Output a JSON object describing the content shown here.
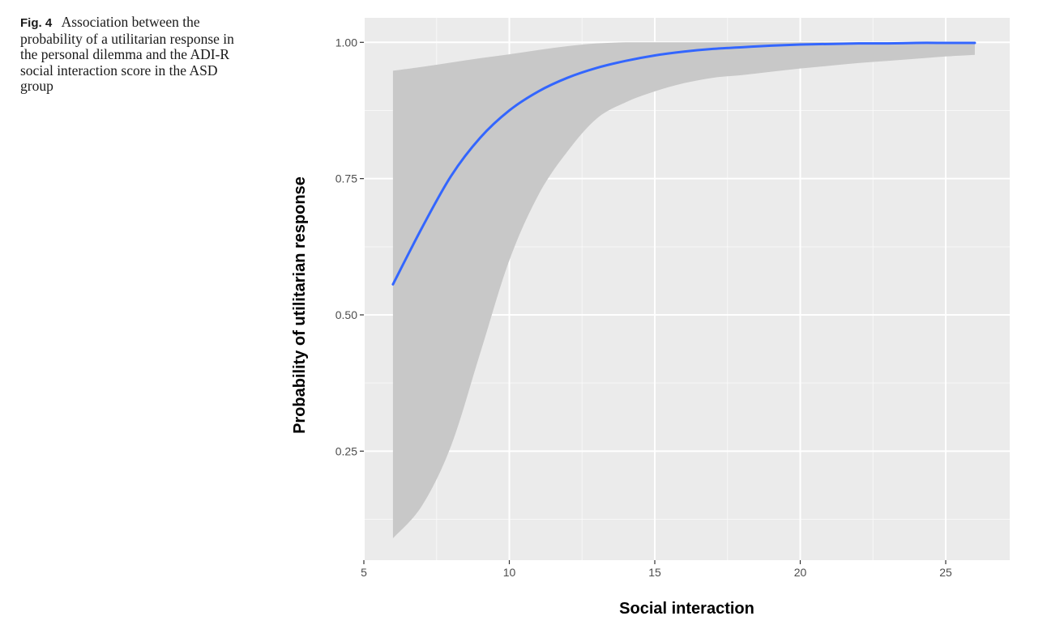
{
  "caption": {
    "label": "Fig. 4",
    "text": "Association between the probability of a utilitarian response in the personal dilemma and the ADI-R social interaction score in the ASD group"
  },
  "chart_data": {
    "type": "line",
    "xlabel": "Social interaction",
    "ylabel": "Probability of utilitarian response",
    "xlim": [
      5,
      27.2
    ],
    "ylim": [
      0.05,
      1.045
    ],
    "x_ticks": [
      5,
      10,
      15,
      20,
      25
    ],
    "y_ticks": [
      0.25,
      0.5,
      0.75,
      1.0
    ],
    "x_tick_labels": [
      "5",
      "10",
      "15",
      "20",
      "25"
    ],
    "y_tick_labels": [
      "0.25",
      "0.50",
      "0.75",
      "1.00"
    ],
    "x_minor_ticks": [
      7.5,
      12.5,
      17.5,
      22.5
    ],
    "y_minor_ticks": [
      0.125,
      0.375,
      0.625,
      0.875
    ],
    "grid": true,
    "series": [
      {
        "color": "#3366ff",
        "x": [
          6,
          7,
          8,
          9,
          10,
          11,
          12,
          13,
          14,
          15,
          16,
          17,
          18,
          19,
          20,
          21,
          22,
          23,
          24,
          25,
          26
        ],
        "y": [
          0.556,
          0.66,
          0.755,
          0.825,
          0.875,
          0.91,
          0.935,
          0.953,
          0.966,
          0.976,
          0.983,
          0.988,
          0.991,
          0.994,
          0.996,
          0.997,
          0.998,
          0.998,
          0.999,
          0.999,
          0.999
        ],
        "ci_lower": [
          0.09,
          0.15,
          0.26,
          0.43,
          0.6,
          0.72,
          0.8,
          0.86,
          0.89,
          0.91,
          0.925,
          0.935,
          0.94,
          0.946,
          0.952,
          0.957,
          0.962,
          0.966,
          0.97,
          0.974,
          0.977
        ],
        "ci_upper": [
          0.948,
          0.955,
          0.963,
          0.971,
          0.978,
          0.986,
          0.993,
          0.998,
          1.0,
          1.0,
          1.0,
          1.0,
          1.0,
          1.0,
          1.0,
          1.0,
          1.0,
          1.0,
          1.0,
          1.0,
          1.0
        ]
      }
    ],
    "colors": {
      "panel_background": "#ebebeb",
      "grid_major": "#ffffff",
      "ribbon": "#c8c8c8",
      "tick_mark": "#333333"
    }
  }
}
